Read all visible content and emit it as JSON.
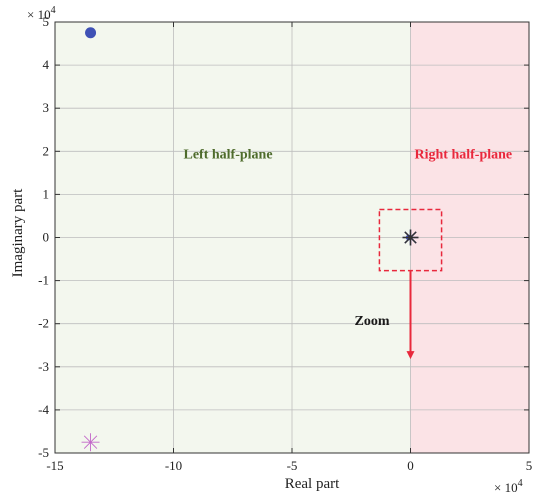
{
  "chart_data": {
    "type": "scatter",
    "xlabel": "Real part",
    "ylabel": "Imaginary part",
    "x_multiplier": "× 10",
    "x_exponent": "4",
    "y_multiplier": "× 10",
    "y_exponent": "4",
    "xlim": [
      -150000,
      50000
    ],
    "ylim": [
      -50000,
      50000
    ],
    "x_ticks": [
      -150000,
      -100000,
      -50000,
      0,
      50000
    ],
    "x_tick_labels": [
      "-15",
      "-10",
      "-5",
      "0",
      "5"
    ],
    "y_ticks": [
      -50000,
      -40000,
      -30000,
      -20000,
      -10000,
      0,
      10000,
      20000,
      30000,
      40000,
      50000
    ],
    "y_tick_labels": [
      "-5",
      "-4",
      "-3",
      "-2",
      "-1",
      "0",
      "1",
      "2",
      "3",
      "4",
      "5"
    ],
    "grid": true,
    "regions": [
      {
        "label": "Left half-plane",
        "x_range": [
          -150000,
          0
        ],
        "color": "#f3f7ee",
        "text_color": "#4e6b2c"
      },
      {
        "label": "Right half-plane",
        "x_range": [
          0,
          50000
        ],
        "color": "#fbe3e6",
        "text_color": "#e8283c"
      }
    ],
    "series": [
      {
        "marker": "circle",
        "color": "#3f51b5",
        "points": [
          [
            -135000,
            47500
          ],
          [
            -800,
            0
          ]
        ]
      },
      {
        "marker": "asterisk",
        "color": "#c266c8",
        "points": [
          [
            -135000,
            -47500
          ]
        ]
      },
      {
        "marker": "asterisk",
        "color": "#1a1a8a",
        "points": [
          [
            0,
            0
          ]
        ]
      },
      {
        "marker": "asterisk",
        "color": "#333333",
        "points": [
          [
            0,
            0
          ]
        ]
      }
    ],
    "annotations": {
      "zoom_label": "Zoom",
      "zoom_box": {
        "x": [
          -1300,
          1300
        ],
        "y": [
          -7700,
          6500
        ]
      },
      "zoom_color": "#e8283c"
    }
  }
}
